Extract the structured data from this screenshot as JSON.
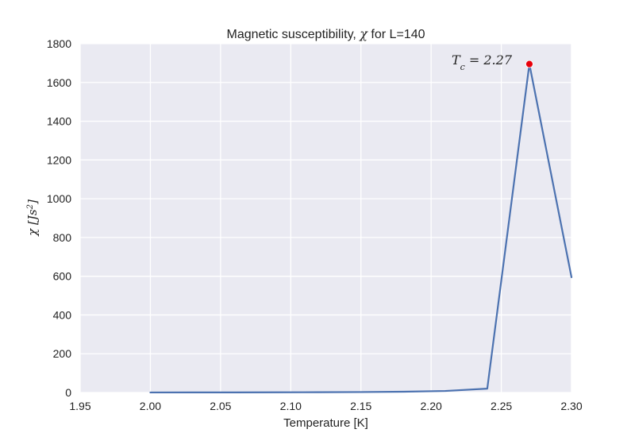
{
  "chart_data": {
    "type": "line",
    "title": {
      "prefix": "Magnetic susceptibility, ",
      "symbol": "χ",
      "suffix": " for L=140"
    },
    "xlabel": "Temperature [K]",
    "ylabel": {
      "symbol": "χ",
      "unit": "[Js",
      "exp": "2",
      "close": "]"
    },
    "xlim": [
      1.95,
      2.3
    ],
    "ylim": [
      0,
      1800
    ],
    "xticks": [
      "1.95",
      "2.00",
      "2.05",
      "2.10",
      "2.15",
      "2.20",
      "2.25",
      "2.30"
    ],
    "yticks": [
      "0",
      "200",
      "400",
      "600",
      "800",
      "1000",
      "1200",
      "1400",
      "1600",
      "1800"
    ],
    "grid": true,
    "series": [
      {
        "color": "#4c72b0",
        "x": [
          2.0,
          2.03,
          2.06,
          2.09,
          2.12,
          2.15,
          2.18,
          2.21,
          2.24,
          2.27,
          2.3
        ],
        "y": [
          0.3,
          0.4,
          0.6,
          0.9,
          1.4,
          2.3,
          4,
          8,
          20,
          1695,
          595
        ]
      }
    ],
    "marker": {
      "x": 2.27,
      "y": 1695,
      "color": "#e8000b"
    },
    "annotation": {
      "lhs": "T",
      "sub": "c",
      "rhs": " = 2.27"
    }
  }
}
